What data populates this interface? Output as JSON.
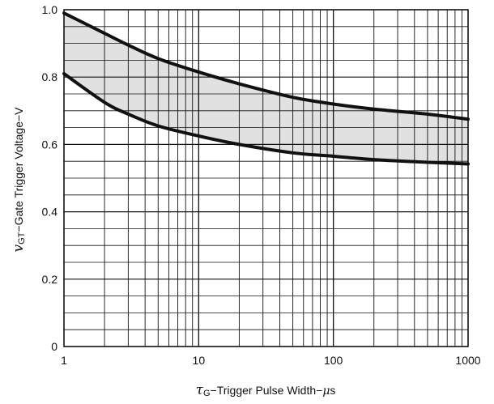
{
  "chart_data": {
    "type": "line",
    "title": "",
    "xscale": "log",
    "xlim": [
      1,
      1000
    ],
    "ylim": [
      0,
      1.0
    ],
    "grid": true,
    "xlabel": {
      "symbol": "τ",
      "subscript": "G",
      "text": "−Trigger Pulse Width−",
      "unit_symbol": "μ",
      "unit": "s"
    },
    "ylabel": {
      "symbol": "v",
      "subscript": "GT",
      "text": "−Gate Trigger Voltage−V"
    },
    "x_ticks": [
      {
        "value": 1,
        "label": "1"
      },
      {
        "value": 10,
        "label": "10"
      },
      {
        "value": 100,
        "label": "100"
      },
      {
        "value": 1000,
        "label": "1000"
      }
    ],
    "y_ticks": [
      {
        "value": 0,
        "label": "0"
      },
      {
        "value": 0.2,
        "label": "0.2"
      },
      {
        "value": 0.4,
        "label": "0.4"
      },
      {
        "value": 0.6,
        "label": "0.6"
      },
      {
        "value": 0.8,
        "label": "0.8"
      },
      {
        "value": 1.0,
        "label": "1.0"
      }
    ],
    "series": [
      {
        "x": [
          1,
          2,
          3,
          5,
          10,
          20,
          50,
          100,
          200,
          500,
          1000
        ],
        "y": [
          0.99,
          0.93,
          0.895,
          0.855,
          0.815,
          0.78,
          0.74,
          0.72,
          0.705,
          0.69,
          0.675
        ]
      },
      {
        "x": [
          1,
          2,
          3,
          5,
          10,
          20,
          50,
          100,
          200,
          500,
          1000
        ],
        "y": [
          0.81,
          0.725,
          0.69,
          0.655,
          0.625,
          0.6,
          0.575,
          0.565,
          0.555,
          0.547,
          0.542
        ]
      }
    ],
    "shaded_region": "between series",
    "colors": {
      "line": "#111111",
      "grid": "#111111",
      "shade": "#bdbdbd"
    }
  }
}
